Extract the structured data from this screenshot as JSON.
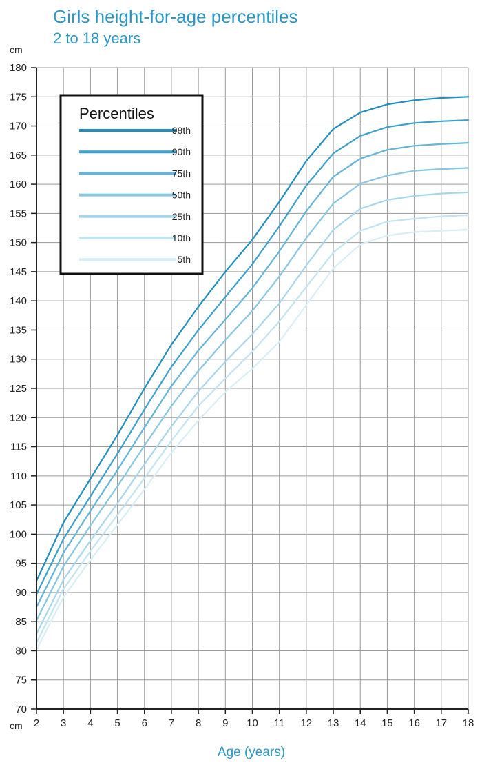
{
  "title": "Girls height-for-age percentiles",
  "subtitle": "2 to 18 years",
  "unit_top": "cm",
  "unit_bottom": "cm",
  "legend_title": "Percentiles",
  "colors": {
    "title": "#2a97c6",
    "grid": "#9a9a9a",
    "axis": "#222222",
    "series": [
      "#1f8fbf",
      "#3aa0cc",
      "#62b4da",
      "#86c6e3",
      "#a7d6ec",
      "#c1e3f2",
      "#d8eef7"
    ]
  },
  "chart_data": {
    "type": "line",
    "title": "Girls height-for-age percentiles",
    "subtitle": "2 to 18 years",
    "xlabel": "Age (years)",
    "ylabel": "cm",
    "xlim": [
      2,
      18
    ],
    "ylim": [
      70,
      180
    ],
    "x_ticks": [
      2,
      3,
      4,
      5,
      6,
      7,
      8,
      9,
      10,
      11,
      12,
      13,
      14,
      15,
      16,
      17,
      18
    ],
    "y_ticks": [
      70,
      75,
      80,
      85,
      90,
      95,
      100,
      105,
      110,
      115,
      120,
      125,
      130,
      135,
      140,
      145,
      150,
      155,
      160,
      165,
      170,
      175,
      180
    ],
    "grid": true,
    "legend_position": "top-left",
    "x": [
      2,
      3,
      4,
      5,
      6,
      7,
      8,
      9,
      10,
      11,
      12,
      13,
      14,
      15,
      16,
      17,
      18
    ],
    "series": [
      {
        "name": "98th",
        "values": [
          92,
          102,
          109.5,
          117,
          125,
          132.5,
          139,
          145,
          150.5,
          157,
          164,
          169.5,
          172.3,
          173.7,
          174.4,
          174.8,
          175
        ]
      },
      {
        "name": "90th",
        "values": [
          89.7,
          99.2,
          106.5,
          113.8,
          121.4,
          128.7,
          135,
          140.7,
          146.3,
          152.8,
          159.8,
          165.3,
          168.3,
          169.8,
          170.5,
          170.8,
          171
        ]
      },
      {
        "name": "75th",
        "values": [
          87.5,
          96.8,
          104,
          111,
          118.3,
          125.4,
          131.5,
          136.8,
          142.2,
          148.5,
          155.4,
          161.3,
          164.4,
          165.9,
          166.6,
          166.9,
          167.1
        ]
      },
      {
        "name": "50th",
        "values": [
          85.2,
          94.5,
          101.5,
          108.2,
          115.2,
          122,
          128,
          133.3,
          138.3,
          144.2,
          150.8,
          156.7,
          160.1,
          161.5,
          162.3,
          162.6,
          162.8
        ]
      },
      {
        "name": "25th",
        "values": [
          82.9,
          92.2,
          98.9,
          105.3,
          112,
          118.5,
          124.5,
          129.6,
          134.3,
          139.6,
          146.1,
          152.2,
          155.8,
          157.3,
          158,
          158.4,
          158.6
        ]
      },
      {
        "name": "10th",
        "values": [
          81.4,
          90.6,
          97.1,
          103.3,
          109.6,
          116,
          122,
          126.7,
          131.3,
          136.5,
          142.4,
          148.3,
          152,
          153.6,
          154.1,
          154.5,
          154.7
        ]
      },
      {
        "name": "5th",
        "values": [
          80.2,
          89.2,
          95.6,
          101.6,
          107.7,
          114,
          119.5,
          124.4,
          128.4,
          133,
          139.3,
          145.6,
          149.7,
          151.2,
          151.8,
          152,
          152.2
        ]
      }
    ]
  }
}
